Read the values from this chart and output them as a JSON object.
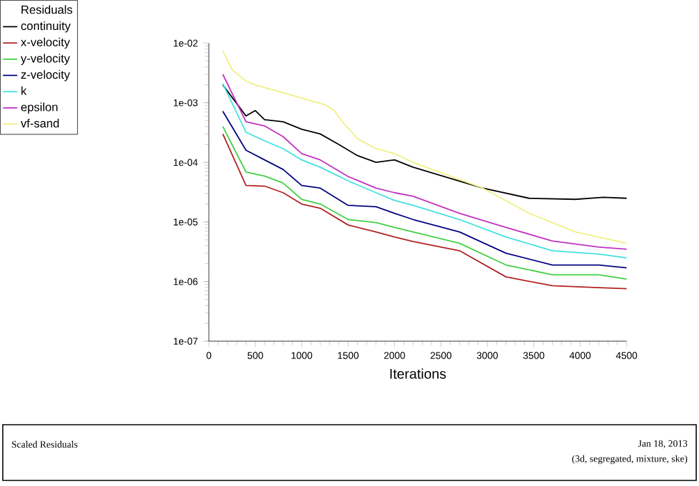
{
  "chart_data": {
    "type": "line",
    "title": "Scaled Residuals",
    "xlabel": "Iterations",
    "legend_title": "Residuals",
    "legend": "top left",
    "marker": "none",
    "log": "y",
    "annotations": [
      "Jan 18, 2013",
      "(3d, segregated, mixture, ske)"
    ],
    "xlim": [
      0,
      4500
    ],
    "ylim": [
      1e-07,
      0.01
    ],
    "xticks": [
      0,
      500,
      1000,
      1500,
      2000,
      2500,
      3000,
      3500,
      4000,
      4500
    ],
    "yticks": [
      {
        "value": 1e-07,
        "label": "1e-07"
      },
      {
        "value": 1e-06,
        "label": "1e-06"
      },
      {
        "value": 1e-05,
        "label": "1e-05"
      },
      {
        "value": 0.0001,
        "label": "1e-04"
      },
      {
        "value": 0.001,
        "label": "1e-03"
      },
      {
        "value": 0.01,
        "label": "1e-02"
      }
    ],
    "series": [
      {
        "name": "continuity",
        "color": "#000000",
        "x": [
          150,
          400,
          500,
          600,
          800,
          1000,
          1200,
          1400,
          1600,
          1800,
          2000,
          2200,
          2950,
          3450,
          3950,
          4250,
          4500
        ],
        "values": [
          0.002,
          0.0006,
          0.00074,
          0.00052,
          0.00048,
          0.00036,
          0.0003,
          0.0002,
          0.00013,
          0.0001,
          0.00011,
          8.3e-05,
          3.7e-05,
          2.5e-05,
          2.4e-05,
          2.6e-05,
          2.5e-05
        ]
      },
      {
        "name": "x-velocity",
        "color": "#b02020",
        "x": [
          150,
          400,
          600,
          800,
          1000,
          1200,
          1500,
          1800,
          2000,
          2200,
          2700,
          3200,
          3700,
          4200,
          4500
        ],
        "values": [
          0.0003,
          4.1e-05,
          4e-05,
          3.1e-05,
          2e-05,
          1.7e-05,
          8.9e-06,
          6.8e-06,
          5.6e-06,
          4.7e-06,
          3.3e-06,
          1.2e-06,
          8.5e-07,
          7.9e-07,
          7.6e-07
        ]
      },
      {
        "name": "y-velocity",
        "color": "#40d040",
        "x": [
          150,
          400,
          600,
          800,
          1000,
          1200,
          1500,
          1800,
          2000,
          2200,
          2700,
          3200,
          3700,
          4200,
          4500
        ],
        "values": [
          0.0004,
          6.9e-05,
          5.9e-05,
          4.5e-05,
          2.4e-05,
          2e-05,
          1.1e-05,
          9.8e-06,
          8.1e-06,
          6.8e-06,
          4.4e-06,
          1.9e-06,
          1.3e-06,
          1.3e-06,
          1.1e-06
        ]
      },
      {
        "name": "z-velocity",
        "color": "#000080",
        "x": [
          150,
          400,
          600,
          800,
          1000,
          1200,
          1500,
          1800,
          2000,
          2200,
          2700,
          3200,
          3700,
          4200,
          4500
        ],
        "values": [
          0.00072,
          0.00016,
          0.00011,
          7.6e-05,
          4.1e-05,
          3.7e-05,
          1.9e-05,
          1.8e-05,
          1.4e-05,
          1.1e-05,
          6.8e-06,
          3e-06,
          1.9e-06,
          1.9e-06,
          1.7e-06
        ]
      },
      {
        "name": "k",
        "color": "#40e0e0",
        "x": [
          150,
          400,
          600,
          800,
          1000,
          1200,
          1500,
          1800,
          2000,
          2200,
          2700,
          3200,
          3700,
          4200,
          4500
        ],
        "values": [
          0.0021,
          0.00032,
          0.00023,
          0.00017,
          0.00011,
          8.3e-05,
          4.9e-05,
          3.1e-05,
          2.3e-05,
          1.9e-05,
          1.1e-05,
          5.6e-06,
          3.3e-06,
          2.9e-06,
          2.5e-06
        ]
      },
      {
        "name": "epsilon",
        "color": "#c030c0",
        "x": [
          150,
          400,
          600,
          800,
          1000,
          1200,
          1500,
          1800,
          2000,
          2200,
          2700,
          3200,
          3700,
          4200,
          4500
        ],
        "values": [
          0.003,
          0.00048,
          0.00041,
          0.00027,
          0.00014,
          0.00011,
          5.8e-05,
          3.7e-05,
          3.1e-05,
          2.7e-05,
          1.4e-05,
          8.1e-06,
          4.8e-06,
          3.8e-06,
          3.5e-06
        ]
      },
      {
        "name": "vf-sand",
        "color": "#f0f080",
        "x": [
          150,
          250,
          400,
          500,
          1000,
          1250,
          1350,
          1450,
          1600,
          1800,
          2000,
          2200,
          2950,
          3450,
          3950,
          4500
        ],
        "values": [
          0.0074,
          0.0036,
          0.0023,
          0.002,
          0.0012,
          0.00093,
          0.00074,
          0.00046,
          0.00025,
          0.00017,
          0.00014,
          0.0001,
          3.7e-05,
          1.4e-05,
          6.8e-06,
          4.4e-06
        ]
      }
    ]
  }
}
